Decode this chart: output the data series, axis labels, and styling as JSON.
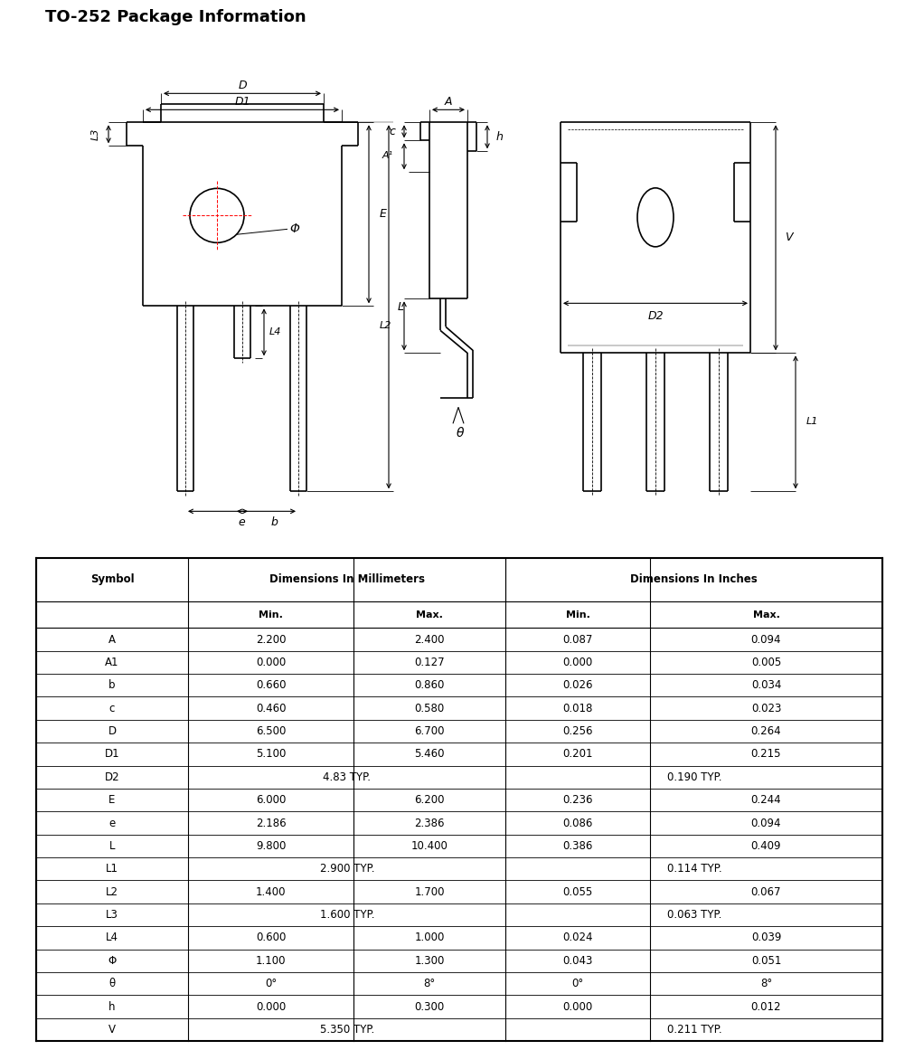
{
  "title": "TO-252 Package Information",
  "table_data": [
    [
      "A",
      "2.200",
      "2.400",
      "0.087",
      "0.094"
    ],
    [
      "A1",
      "0.000",
      "0.127",
      "0.000",
      "0.005"
    ],
    [
      "b",
      "0.660",
      "0.860",
      "0.026",
      "0.034"
    ],
    [
      "c",
      "0.460",
      "0.580",
      "0.018",
      "0.023"
    ],
    [
      "D",
      "6.500",
      "6.700",
      "0.256",
      "0.264"
    ],
    [
      "D1",
      "5.100",
      "5.460",
      "0.201",
      "0.215"
    ],
    [
      "D2",
      "4.83 TYP.",
      "",
      "0.190 TYP.",
      ""
    ],
    [
      "E",
      "6.000",
      "6.200",
      "0.236",
      "0.244"
    ],
    [
      "e",
      "2.186",
      "2.386",
      "0.086",
      "0.094"
    ],
    [
      "L",
      "9.800",
      "10.400",
      "0.386",
      "0.409"
    ],
    [
      "L1",
      "2.900 TYP.",
      "",
      "0.114 TYP.",
      ""
    ],
    [
      "L2",
      "1.400",
      "1.700",
      "0.055",
      "0.067"
    ],
    [
      "L3",
      "1.600 TYP.",
      "",
      "0.063 TYP.",
      ""
    ],
    [
      "L4",
      "0.600",
      "1.000",
      "0.024",
      "0.039"
    ],
    [
      "Φ",
      "1.100",
      "1.300",
      "0.043",
      "0.051"
    ],
    [
      "θ",
      "0°",
      "8°",
      "0°",
      "8°"
    ],
    [
      "h",
      "0.000",
      "0.300",
      "0.000",
      "0.012"
    ],
    [
      "V",
      "5.350 TYP.",
      "",
      "0.211 TYP.",
      ""
    ]
  ],
  "bg_color": "#ffffff",
  "line_color": "#000000"
}
